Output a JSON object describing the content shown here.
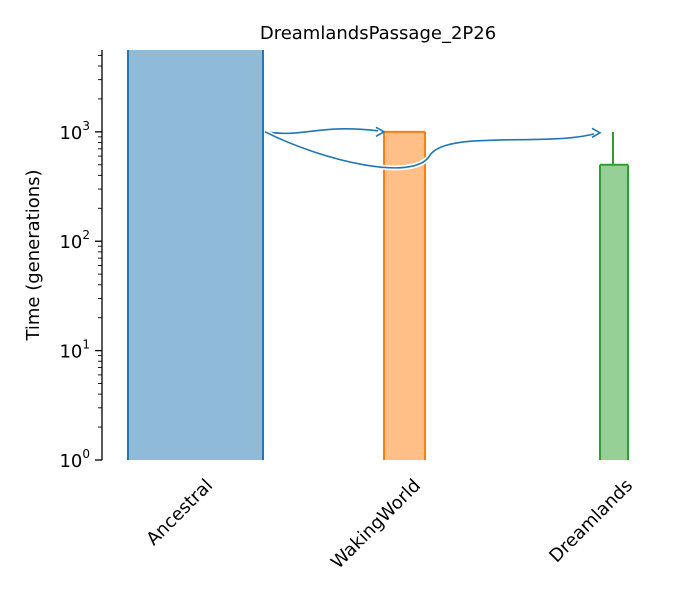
{
  "chart_data": {
    "type": "demography",
    "title": "DreamlandsPassage_2P26",
    "ylabel": "Time (generations)",
    "xlabel": "",
    "y_scale": "log",
    "ylim": [
      1,
      5600
    ],
    "yticks": [
      {
        "value": 1,
        "base": "10",
        "exp": "0"
      },
      {
        "value": 10,
        "base": "10",
        "exp": "1"
      },
      {
        "value": 100,
        "base": "10",
        "exp": "2"
      },
      {
        "value": 1000,
        "base": "10",
        "exp": "3"
      }
    ],
    "demes": [
      {
        "name": "Ancestral",
        "start_time": 5600,
        "end_time": 1,
        "fill": "#8fbad8",
        "stroke": "#1f77b4"
      },
      {
        "name": "WakingWorld",
        "start_time": 1000,
        "end_time": 1,
        "fill": "#ffbf86",
        "stroke": "#ff7f0e"
      },
      {
        "name": "Dreamlands",
        "start_time": 500,
        "end_time": 1,
        "stem_top": 1000,
        "fill": "#96d096",
        "stroke": "#2ca02c"
      }
    ],
    "migrations": [
      {
        "source": "Ancestral",
        "dest": "WakingWorld",
        "time": 1000,
        "color": "#1f77b4"
      },
      {
        "source": "Ancestral",
        "dest": "Dreamlands",
        "time": 1000,
        "color": "#1f77b4"
      }
    ],
    "legend": "none",
    "grid": false
  }
}
